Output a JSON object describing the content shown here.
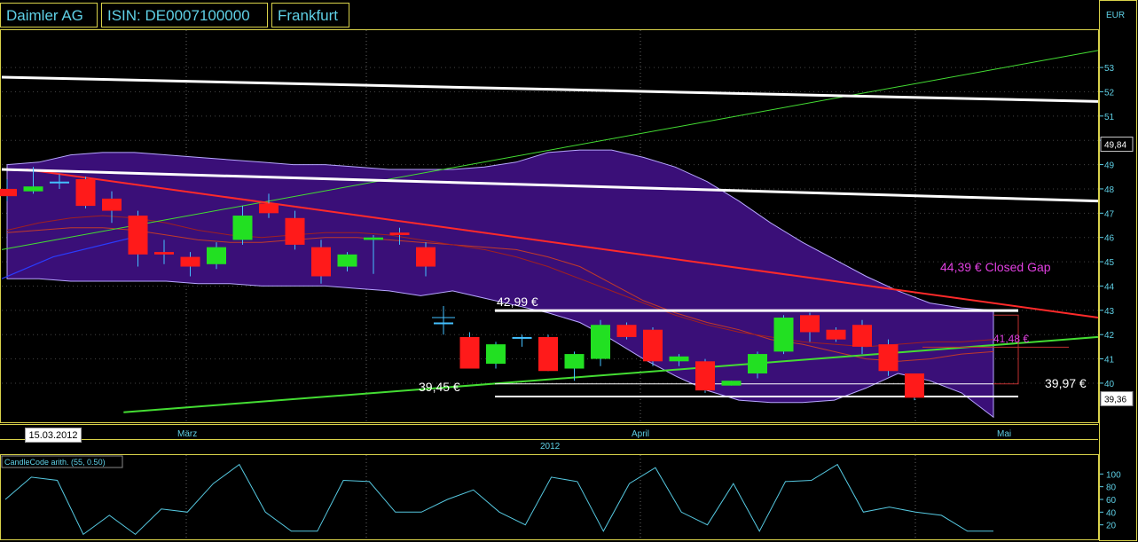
{
  "header": {
    "name": "Daimler AG",
    "isin": "ISIN: DE0007100000",
    "exchange": "Frankfurt"
  },
  "currency": "EUR",
  "current_price_tag": "49,84",
  "last_price_tag": "39,36",
  "date_tag": "15.03.2012",
  "annotations": {
    "resistance": "42,99 €",
    "support": "39,45 €",
    "closed_gap": "44,39 € Closed Gap",
    "mid_level": "41,48 €",
    "right_level": "39,97 €"
  },
  "indicator_label": "CandleCode arith. (55, 0.50)",
  "colors": {
    "background": "#000000",
    "frame": "#d9d24a",
    "axis_text": "#5fd0e6",
    "band_fill": "#3a0f78",
    "up_candle": "#22e022",
    "down_candle": "#ff1a1a",
    "trend_green": "#44dd33",
    "trend_red": "#ff2a2a",
    "level_white": "#ffffff",
    "annotation_magenta": "#e040e0",
    "indicator_line": "#55c8e0"
  },
  "chart_data": [
    {
      "type": "candlestick",
      "title": "",
      "ylabel": "EUR",
      "ylim": [
        38.5,
        54.5
      ],
      "y_ticks": [
        40,
        41,
        42,
        43,
        44,
        45,
        46,
        47,
        48,
        49,
        50,
        51,
        52,
        53
      ],
      "x_month_labels": [
        "März",
        "April",
        "Mai"
      ],
      "x_year_label": "2012",
      "candles": [
        {
          "open": 48.0,
          "close": 47.7,
          "high": 48.4,
          "low": 47.5
        },
        {
          "open": 47.9,
          "close": 48.1,
          "high": 48.9,
          "low": 47.8
        },
        {
          "open": 48.3,
          "close": 48.3,
          "high": 48.6,
          "low": 48.0
        },
        {
          "open": 48.4,
          "close": 47.3,
          "high": 48.5,
          "low": 47.2
        },
        {
          "open": 47.6,
          "close": 47.1,
          "high": 47.9,
          "low": 46.6
        },
        {
          "open": 46.9,
          "close": 45.3,
          "high": 47.1,
          "low": 44.8
        },
        {
          "open": 45.4,
          "close": 45.3,
          "high": 45.9,
          "low": 44.9
        },
        {
          "open": 45.2,
          "close": 44.8,
          "high": 45.4,
          "low": 44.4
        },
        {
          "open": 44.9,
          "close": 45.6,
          "high": 45.8,
          "low": 44.7
        },
        {
          "open": 45.9,
          "close": 46.9,
          "high": 47.3,
          "low": 45.7
        },
        {
          "open": 47.4,
          "close": 47.0,
          "high": 47.8,
          "low": 46.8
        },
        {
          "open": 46.8,
          "close": 45.7,
          "high": 47.1,
          "low": 45.5
        },
        {
          "open": 45.6,
          "close": 44.4,
          "high": 45.9,
          "low": 44.1
        },
        {
          "open": 44.8,
          "close": 45.3,
          "high": 45.4,
          "low": 44.6
        },
        {
          "open": 45.9,
          "close": 46.0,
          "high": 46.1,
          "low": 44.5
        },
        {
          "open": 46.2,
          "close": 46.1,
          "high": 46.4,
          "low": 45.7
        },
        {
          "open": 45.6,
          "close": 44.8,
          "high": 45.8,
          "low": 44.4
        },
        {
          "open": 42.5,
          "close": 42.5,
          "high": 43.0,
          "low": 42.0
        },
        {
          "open": 41.9,
          "close": 40.6,
          "high": 42.1,
          "low": 40.6
        },
        {
          "open": 40.8,
          "close": 41.6,
          "high": 41.7,
          "low": 40.6
        },
        {
          "open": 41.9,
          "close": 41.9,
          "high": 42.0,
          "low": 41.5
        },
        {
          "open": 41.9,
          "close": 40.5,
          "high": 42.0,
          "low": 40.5
        },
        {
          "open": 40.6,
          "close": 41.2,
          "high": 41.3,
          "low": 40.1
        },
        {
          "open": 41.0,
          "close": 42.4,
          "high": 42.6,
          "low": 40.7
        },
        {
          "open": 42.4,
          "close": 41.9,
          "high": 42.5,
          "low": 41.8
        },
        {
          "open": 42.2,
          "close": 40.9,
          "high": 42.3,
          "low": 40.7
        },
        {
          "open": 40.9,
          "close": 41.1,
          "high": 41.2,
          "low": 40.7
        },
        {
          "open": 40.9,
          "close": 39.7,
          "high": 41.0,
          "low": 39.6
        },
        {
          "open": 39.9,
          "close": 40.1,
          "high": 40.1,
          "low": 39.9
        },
        {
          "open": 40.4,
          "close": 41.2,
          "high": 41.3,
          "low": 40.2
        },
        {
          "open": 41.3,
          "close": 42.7,
          "high": 42.8,
          "low": 41.2
        },
        {
          "open": 42.8,
          "close": 42.1,
          "high": 42.9,
          "low": 41.7
        },
        {
          "open": 42.2,
          "close": 41.8,
          "high": 42.3,
          "low": 41.7
        },
        {
          "open": 42.4,
          "close": 41.5,
          "high": 42.6,
          "low": 41.2
        },
        {
          "open": 41.6,
          "close": 40.5,
          "high": 41.8,
          "low": 40.3
        },
        {
          "open": 40.4,
          "close": 39.4,
          "high": 40.4,
          "low": 39.3
        }
      ],
      "trendlines": [
        {
          "name": "green-rising-top",
          "from": [
            0,
            45.5
          ],
          "to": [
            45,
            53.7
          ]
        },
        {
          "name": "green-support",
          "from": [
            5,
            38.8
          ],
          "to": [
            45,
            41.9
          ]
        },
        {
          "name": "red-resistance",
          "from": [
            1,
            48.8
          ],
          "to": [
            45,
            42.7
          ]
        },
        {
          "name": "white-upper",
          "from": [
            0,
            52.6
          ],
          "to": [
            45,
            51.6
          ]
        },
        {
          "name": "white-lower",
          "from": [
            0,
            48.8
          ],
          "to": [
            45,
            47.5
          ]
        }
      ],
      "horizontal_levels": [
        42.99,
        39.45,
        39.97,
        41.48
      ],
      "bollinger_band": {
        "upper": [
          49.0,
          49.1,
          49.4,
          49.5,
          49.5,
          49.4,
          49.3,
          49.2,
          49.1,
          49.0,
          49.0,
          48.9,
          48.8,
          48.8,
          48.8,
          48.9,
          49.1,
          49.5,
          49.6,
          49.6,
          49.3,
          48.9,
          48.3,
          47.5,
          46.6,
          45.8,
          45.1,
          44.4,
          43.8,
          43.3,
          43.1,
          43.0
        ],
        "lower": [
          44.3,
          44.3,
          44.2,
          44.2,
          44.2,
          44.2,
          44.1,
          44.1,
          44.0,
          44.0,
          44.0,
          43.9,
          43.8,
          43.6,
          43.8,
          43.5,
          43.2,
          42.9,
          42.5,
          41.8,
          41.0,
          40.3,
          39.7,
          39.3,
          39.2,
          39.2,
          39.3,
          39.8,
          40.4,
          40.1,
          39.6,
          38.6
        ]
      }
    },
    {
      "type": "line",
      "title": "CandleCode arith. (55, 0.50)",
      "ylim": [
        0,
        120
      ],
      "y_ticks": [
        20,
        40,
        60,
        80,
        100
      ],
      "values": [
        60,
        95,
        90,
        5,
        35,
        5,
        45,
        40,
        85,
        115,
        40,
        10,
        10,
        90,
        88,
        40,
        40,
        60,
        75,
        40,
        20,
        95,
        88,
        10,
        85,
        110,
        40,
        20,
        85,
        10,
        88,
        90,
        115,
        40,
        48,
        40,
        35,
        10,
        10
      ]
    }
  ]
}
